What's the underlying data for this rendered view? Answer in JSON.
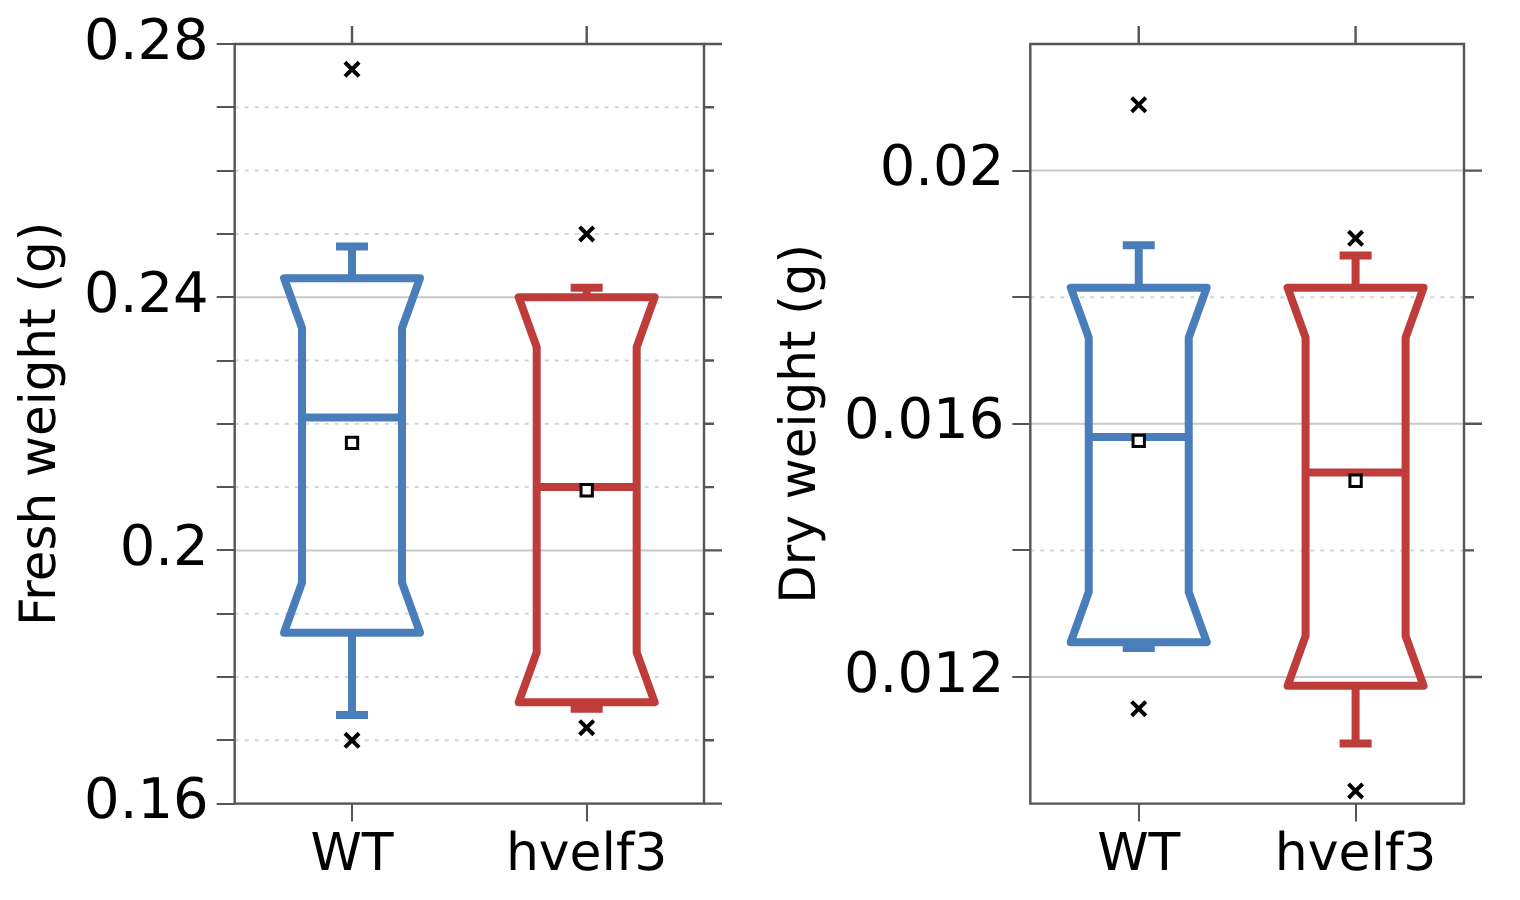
{
  "chart_data": [
    {
      "type": "box",
      "ylabel": "Fresh weight (g)",
      "categories": [
        "WT",
        "hvelf3"
      ],
      "colors": [
        "#4a7ebb",
        "#be3c3a"
      ],
      "boxes": [
        {
          "low": 0.174,
          "q1": 0.187,
          "median": 0.221,
          "q3": 0.243,
          "high": 0.248,
          "mean": 0.217,
          "outliers": [
            0.276,
            0.17
          ]
        },
        {
          "low": 0.175,
          "q1": 0.176,
          "median": 0.21,
          "q3": 0.24,
          "high": 0.2415,
          "mean": 0.2095,
          "outliers": [
            0.25,
            0.172
          ]
        }
      ],
      "ylim": [
        0.16,
        0.28
      ],
      "yticks": [
        0.16,
        {
          "value": 0.17,
          "label": null
        },
        {
          "value": 0.18,
          "label": null
        },
        {
          "value": 0.19,
          "label": null
        },
        0.2,
        {
          "value": 0.21,
          "label": null
        },
        {
          "value": 0.22,
          "label": null
        },
        {
          "value": 0.23,
          "label": null
        },
        0.24,
        {
          "value": 0.25,
          "label": null
        },
        {
          "value": 0.26,
          "label": null
        },
        {
          "value": 0.27,
          "label": null
        },
        0.28
      ],
      "grid": "y"
    },
    {
      "type": "box",
      "ylabel": "Dry weight (g)",
      "categories": [
        "WT",
        "hvelf3"
      ],
      "colors": [
        "#4a7ebb",
        "#be3c3a"
      ],
      "boxes": [
        {
          "low": 0.01246,
          "q1": 0.01255,
          "median": 0.01579,
          "q3": 0.01815,
          "high": 0.01882,
          "mean": 0.01573,
          "outliers": [
            0.02104,
            0.0115
          ]
        },
        {
          "low": 0.01095,
          "q1": 0.01186,
          "median": 0.01523,
          "q3": 0.01815,
          "high": 0.01866,
          "mean": 0.0151,
          "outliers": [
            0.01893,
            0.0102
          ]
        }
      ],
      "ylim": [
        0.01,
        0.022
      ],
      "yticks": [
        0.012,
        {
          "value": 0.014,
          "label": null
        },
        0.016,
        {
          "value": 0.018,
          "label": null
        },
        0.02
      ],
      "grid": "y"
    }
  ]
}
